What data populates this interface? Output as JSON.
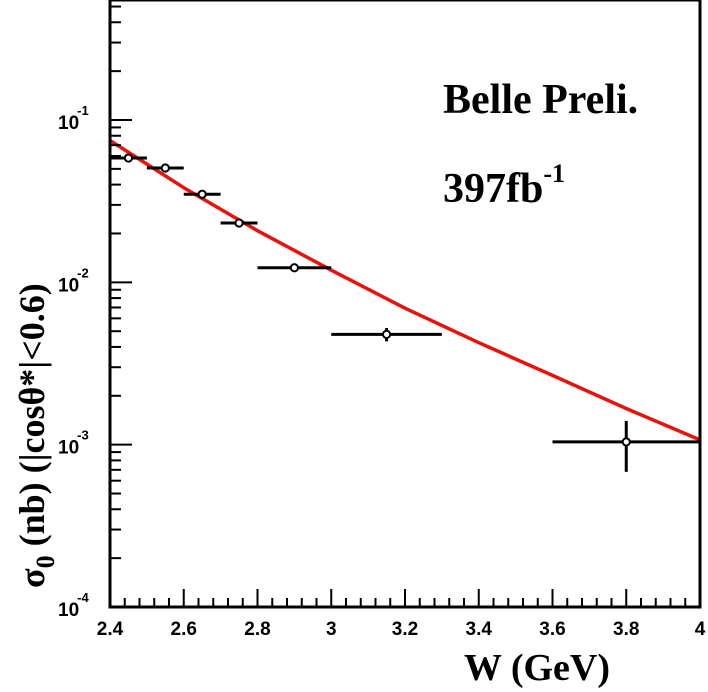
{
  "chart_data": {
    "type": "scatter",
    "xlabel": "W (GeV)",
    "ylabel": {
      "symbol": "σ",
      "subscript": "0",
      "rest": " (nb) (|cosθ*|<0.6)"
    },
    "annotation": {
      "line1": "Belle Preli.",
      "line2_base": "397fb",
      "line2_sup": "-1"
    },
    "x_range": [
      2.4,
      4.0
    ],
    "y_range": [
      0.0001,
      0.1
    ],
    "y_scale": "log",
    "x_ticks": [
      {
        "value": 2.4,
        "label": "2.4"
      },
      {
        "value": 2.6,
        "label": "2.6"
      },
      {
        "value": 2.8,
        "label": "2.8"
      },
      {
        "value": 3.0,
        "label": "3"
      },
      {
        "value": 3.2,
        "label": "3.2"
      },
      {
        "value": 3.4,
        "label": "3.4"
      },
      {
        "value": 3.6,
        "label": "3.6"
      },
      {
        "value": 3.8,
        "label": "3.8"
      },
      {
        "value": 4.0,
        "label": "4"
      }
    ],
    "y_ticks": [
      {
        "value": 0.1,
        "base": "10",
        "exp": "-1"
      },
      {
        "value": 0.01,
        "base": "10",
        "exp": "-2"
      },
      {
        "value": 0.001,
        "base": "10",
        "exp": "-3"
      },
      {
        "value": 0.0001,
        "base": "10",
        "exp": "-4"
      }
    ],
    "points": [
      {
        "x": 2.45,
        "y": 0.0583,
        "xerr": 0.05,
        "yerr_low": 0.0017,
        "yerr_high": 0.0017
      },
      {
        "x": 2.55,
        "y": 0.0506,
        "xerr": 0.05,
        "yerr_low": 0.0015,
        "yerr_high": 0.0015
      },
      {
        "x": 2.65,
        "y": 0.0349,
        "xerr": 0.05,
        "yerr_low": 0.0012,
        "yerr_high": 0.0012
      },
      {
        "x": 2.75,
        "y": 0.0232,
        "xerr": 0.05,
        "yerr_low": 0.0009,
        "yerr_high": 0.0009
      },
      {
        "x": 2.9,
        "y": 0.0123,
        "xerr": 0.1,
        "yerr_low": 0.0006,
        "yerr_high": 0.0006
      },
      {
        "x": 3.15,
        "y": 0.00478,
        "xerr": 0.15,
        "yerr_low": 0.00045,
        "yerr_high": 0.00045
      },
      {
        "x": 3.8,
        "y": 0.00104,
        "xerr": 0.2,
        "yerr_low": 0.00036,
        "yerr_high": 0.00036
      }
    ],
    "fit": {
      "color": "#e8120c",
      "x": [
        2.4,
        2.6,
        2.8,
        3.0,
        3.2,
        3.4,
        3.6,
        3.8,
        4.0
      ],
      "y": [
        0.0748,
        0.0383,
        0.0208,
        0.01187,
        0.00693,
        0.00425,
        0.00267,
        0.00167,
        0.00107
      ]
    }
  }
}
